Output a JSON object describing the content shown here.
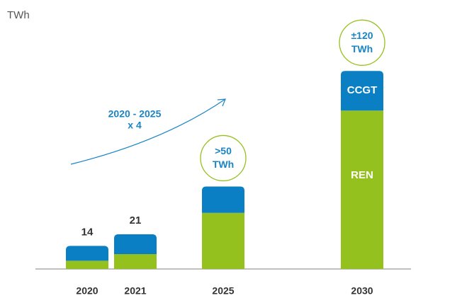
{
  "chart_data": {
    "type": "stacked_bar",
    "unit": "TWh",
    "categories": [
      "2020",
      "2021",
      "2025",
      "2030"
    ],
    "series": [
      {
        "name": "REN",
        "color": "#95c11f",
        "values": [
          5,
          9,
          34,
          96
        ]
      },
      {
        "name": "CCGT",
        "color": "#0b7fc4",
        "values": [
          9,
          12,
          16,
          24
        ]
      }
    ],
    "totals": [
      14,
      21,
      50,
      120
    ],
    "total_labels": [
      [
        "14"
      ],
      [
        "21"
      ],
      [
        ">50",
        "TWh"
      ],
      [
        "±120",
        "TWh"
      ]
    ],
    "annotation": [
      "2020 - 2025",
      "x 4"
    ],
    "ylim": [
      0,
      130
    ]
  }
}
